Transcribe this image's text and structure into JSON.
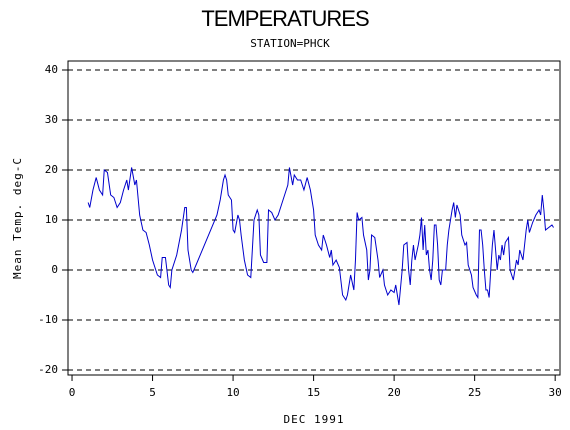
{
  "chart_data": {
    "type": "line",
    "title": "TEMPERATURES",
    "subtitle": "STATION=PHCK",
    "x_label": "DEC 1991",
    "y_label": "Mean Temp. deg-C",
    "xlim": [
      -0.25,
      30.3
    ],
    "xticks": [
      0,
      5,
      10,
      15,
      20,
      25,
      30
    ],
    "ylim": [
      -21,
      41.8
    ],
    "yticks": [
      -20,
      -10,
      0,
      10,
      20,
      30,
      40
    ],
    "grid": true,
    "series": [
      {
        "name": "Mean Temp",
        "color": "#0000cc",
        "x": [
          1.0,
          1.1,
          1.3,
          1.5,
          1.7,
          1.9,
          2.0,
          2.2,
          2.4,
          2.6,
          2.8,
          3.0,
          3.2,
          3.4,
          3.5,
          3.7,
          3.9,
          4.0,
          4.2,
          4.4,
          4.6,
          4.8,
          5.0,
          5.2,
          5.3,
          5.5,
          5.6,
          5.8,
          6.0,
          6.1,
          6.2,
          6.5,
          6.8,
          7.0,
          7.1,
          7.2,
          7.4,
          7.5,
          7.7,
          9.0,
          9.2,
          9.4,
          9.5,
          9.6,
          9.7,
          9.9,
          10.0,
          10.1,
          10.3,
          10.4,
          10.5,
          10.7,
          10.9,
          11.1,
          11.3,
          11.5,
          11.6,
          11.7,
          11.9,
          12.1,
          12.2,
          12.4,
          12.6,
          12.8,
          13.0,
          13.2,
          13.4,
          13.5,
          13.7,
          13.8,
          14.0,
          14.2,
          14.4,
          14.6,
          14.8,
          15.0,
          15.1,
          15.3,
          15.5,
          15.6,
          15.8,
          16.0,
          16.1,
          16.2,
          16.4,
          16.6,
          16.8,
          17.0,
          17.1,
          17.3,
          17.5,
          17.6,
          17.7,
          17.8,
          18.0,
          18.1,
          18.3,
          18.4,
          18.5,
          18.6,
          18.8,
          19.0,
          19.1,
          19.3,
          19.4,
          19.6,
          19.8,
          20.0,
          20.1,
          20.3,
          20.5,
          20.6,
          20.8,
          20.9,
          21.0,
          21.1,
          21.2,
          21.3,
          21.5,
          21.6,
          21.7,
          21.8,
          21.9,
          22.0,
          22.1,
          22.2,
          22.3,
          22.4,
          22.5,
          22.6,
          22.7,
          22.8,
          22.9,
          23.0,
          23.2,
          23.3,
          23.4,
          23.6,
          23.7,
          23.8,
          23.9,
          24.1,
          24.2,
          24.4,
          24.5,
          24.6,
          24.8,
          24.9,
          25.1,
          25.2,
          25.3,
          25.4,
          25.5,
          25.6,
          25.7,
          25.8,
          25.9,
          26.0,
          26.1,
          26.2,
          26.3,
          26.4,
          26.5,
          26.6,
          26.7,
          26.8,
          26.9,
          27.0,
          27.1,
          27.2,
          27.4,
          27.5,
          27.6,
          27.7,
          27.8,
          28.0,
          28.1,
          28.2,
          28.3,
          28.4,
          28.6,
          28.8,
          29.0,
          29.1,
          29.2,
          29.3,
          29.4,
          29.6,
          29.8,
          29.9
        ],
        "values": [
          13.5,
          12.5,
          16,
          18.5,
          16,
          15,
          20,
          19.5,
          15,
          14.5,
          12.5,
          13.5,
          16,
          18,
          16,
          20.5,
          17,
          18,
          11,
          8,
          7.5,
          5,
          2,
          0,
          -1,
          -1.5,
          2.5,
          2.5,
          -3,
          -3.5,
          0,
          3,
          8,
          12.5,
          12.5,
          4,
          0,
          -0.5,
          1,
          11,
          14,
          18,
          19,
          18,
          15,
          14,
          8,
          7.5,
          11,
          10,
          7,
          2,
          -1,
          -1.5,
          10,
          12,
          11,
          3,
          1.5,
          1.5,
          12,
          11.5,
          10,
          11,
          13,
          15,
          17,
          20.5,
          17,
          19,
          18,
          18,
          16,
          18.5,
          16,
          12,
          7,
          5,
          4,
          7,
          5,
          2.5,
          4,
          1,
          2,
          0.5,
          -5,
          -6,
          -5,
          -1,
          -4,
          2,
          11.5,
          10,
          10.5,
          7,
          4,
          -2,
          0,
          7,
          6.5,
          2,
          -1.5,
          0,
          -3,
          -5,
          -4,
          -4.5,
          -3,
          -7,
          0,
          5,
          5.5,
          0,
          -3,
          2,
          5,
          2,
          5,
          7,
          10.5,
          4,
          9,
          3,
          4,
          0,
          -2,
          2,
          9,
          9,
          5,
          -2,
          -3,
          0,
          0,
          5,
          8,
          12,
          13.5,
          10.5,
          13,
          11,
          7,
          5,
          5.5,
          1,
          -1,
          -3.5,
          -5,
          -5.5,
          8,
          8,
          5,
          0,
          -4,
          -4,
          -5.5,
          0,
          5,
          8,
          4,
          0,
          3,
          2,
          5,
          3,
          5.5,
          6,
          6.5,
          0,
          -2,
          0,
          2,
          1,
          4,
          2,
          5,
          8,
          10,
          7.5,
          9.5,
          11,
          12,
          11,
          15,
          12,
          8,
          8.5,
          9,
          8.5
        ]
      }
    ]
  }
}
